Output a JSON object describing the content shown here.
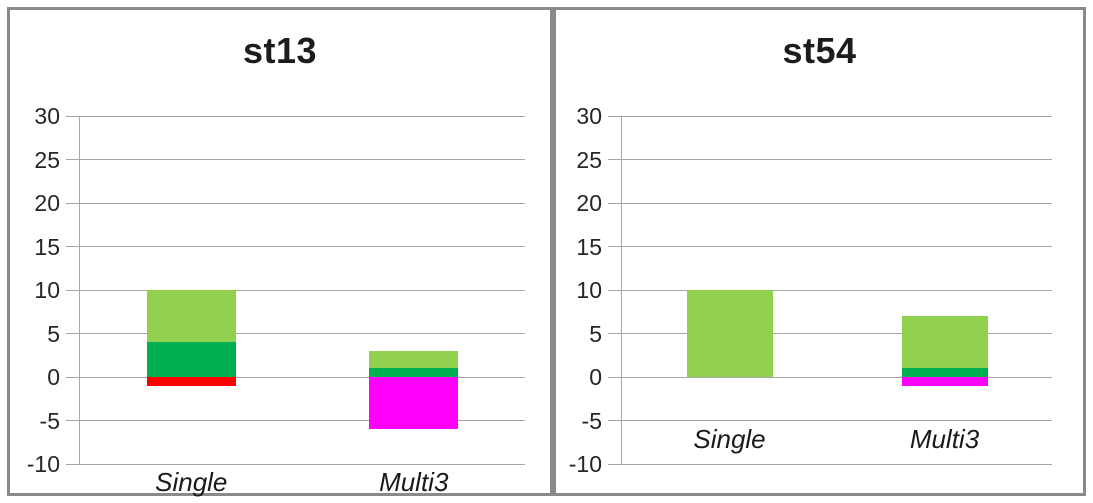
{
  "page": {
    "background": "#FFFFFF",
    "panel_border_color": "#8A8A8A"
  },
  "styles": {
    "gridline_color": "#A6A6A6",
    "axis_color": "#A6A6A6",
    "title_color": "#1C1C1C",
    "label_color": "#262626"
  },
  "chart_data": [
    {
      "type": "bar",
      "stacked": true,
      "title": "st13",
      "categories": [
        "Single",
        "Multi3"
      ],
      "series": [
        {
          "name": "green",
          "color": "#00B050",
          "values": [
            4,
            1
          ]
        },
        {
          "name": "light-green",
          "color": "#92D050",
          "values": [
            6,
            2
          ]
        },
        {
          "name": "red",
          "color": "#FF0000",
          "values": [
            -1,
            0
          ]
        },
        {
          "name": "magenta",
          "color": "#FF00FF",
          "values": [
            0,
            -6
          ]
        }
      ],
      "ylim": [
        -10,
        30
      ],
      "yticks": [
        30,
        25,
        20,
        15,
        10,
        5,
        0,
        -5,
        -10
      ],
      "grid": true,
      "legend": "none",
      "category_label_row_value": -10
    },
    {
      "type": "bar",
      "stacked": true,
      "title": "st54",
      "categories": [
        "Single",
        "Multi3"
      ],
      "series": [
        {
          "name": "green",
          "color": "#00B050",
          "values": [
            0,
            1
          ]
        },
        {
          "name": "light-green",
          "color": "#92D050",
          "values": [
            10,
            6
          ]
        },
        {
          "name": "red",
          "color": "#FF0000",
          "values": [
            0,
            0
          ]
        },
        {
          "name": "magenta",
          "color": "#FF00FF",
          "values": [
            0,
            -1
          ]
        }
      ],
      "ylim": [
        -10,
        30
      ],
      "yticks": [
        30,
        25,
        20,
        15,
        10,
        5,
        0,
        -5,
        -10
      ],
      "grid": true,
      "legend": "none",
      "category_label_row_value": -5
    }
  ]
}
